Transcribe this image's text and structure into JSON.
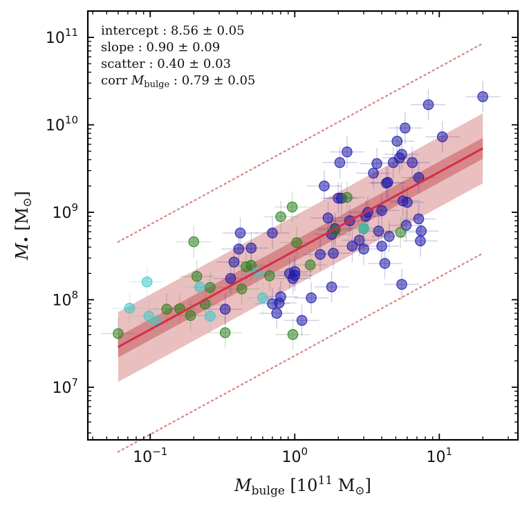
{
  "chart_data": {
    "type": "scatter",
    "title": "",
    "xlabel": {
      "symbol": "M",
      "sub": "bulge",
      "units_pre": "[10",
      "units_exp": "11",
      "units_post": " M",
      "sun": "⊙",
      "close": "]"
    },
    "ylabel": {
      "symbol": "M",
      "sub": "•",
      "units_pre": "[M",
      "sun": "⊙",
      "close": "]"
    },
    "xscale": "log",
    "yscale": "log",
    "xlim": [
      0.037,
      35
    ],
    "ylim": [
      2500000,
      200000000000
    ],
    "xticks": [
      {
        "value": 0.1,
        "base": "10",
        "exp": "−1"
      },
      {
        "value": 1,
        "base": "10",
        "exp": "0"
      },
      {
        "value": 10,
        "base": "10",
        "exp": "1"
      }
    ],
    "yticks": [
      {
        "value": 10000000,
        "base": "10",
        "exp": "7"
      },
      {
        "value": 100000000,
        "base": "10",
        "exp": "8"
      },
      {
        "value": 1000000000,
        "base": "10",
        "exp": "9"
      },
      {
        "value": 10000000000,
        "base": "10",
        "exp": "10"
      },
      {
        "value": 100000000000,
        "base": "10",
        "exp": "11"
      }
    ],
    "annotations": [
      {
        "label": "intercept",
        "sub": "",
        "value": "8.56 ± 0.05"
      },
      {
        "label": "slope",
        "sub": "",
        "value": "0.90 ± 0.09"
      },
      {
        "label": "scatter",
        "sub": "",
        "value": "0.40 ± 0.03"
      },
      {
        "label": "corr ",
        "sym": "M",
        "sub": "bulge",
        "value": "0.79 ± 0.05"
      }
    ],
    "fit": {
      "x_range": [
        0.06,
        20
      ],
      "intercept": 8.56,
      "slope": 0.9,
      "scatter": 0.4,
      "pivot": 1,
      "line_color": "#d62d45",
      "band_color": "#d98a8a",
      "inner_band_dex": 0.12,
      "dotted_offset_dex": 1.2
    },
    "series": [
      {
        "color": "#1f1aa8",
        "points": [
          [
            0.42,
            580000000
          ],
          [
            0.38,
            270000000
          ],
          [
            0.36,
            175000000
          ],
          [
            0.5,
            390000000
          ],
          [
            0.33,
            78000000
          ],
          [
            0.7,
            90000000
          ],
          [
            0.75,
            70000000
          ],
          [
            0.78,
            92000000
          ],
          [
            0.8,
            108000000
          ],
          [
            0.92,
            200000000
          ],
          [
            0.97,
            175000000
          ],
          [
            1.0,
            210000000
          ],
          [
            1.12,
            58000000
          ],
          [
            1.3,
            105000000
          ],
          [
            1.5,
            330000000
          ],
          [
            1.6,
            2000000000
          ],
          [
            1.8,
            140000000
          ],
          [
            1.85,
            340000000
          ],
          [
            1.9,
            650000000
          ],
          [
            2.0,
            1450000000
          ],
          [
            2.05,
            3700000000
          ],
          [
            2.3,
            4900000000
          ],
          [
            2.4,
            800000000
          ],
          [
            2.5,
            410000000
          ],
          [
            2.8,
            480000000
          ],
          [
            3.0,
            380000000
          ],
          [
            3.1,
            900000000
          ],
          [
            3.5,
            2800000000
          ],
          [
            3.7,
            3600000000
          ],
          [
            3.8,
            610000000
          ],
          [
            4.0,
            410000000
          ],
          [
            4.2,
            260000000
          ],
          [
            4.4,
            2200000000
          ],
          [
            4.5,
            530000000
          ],
          [
            4.8,
            3700000000
          ],
          [
            5.1,
            6500000000
          ],
          [
            5.3,
            4200000000
          ],
          [
            5.5,
            4600000000
          ],
          [
            5.5,
            150000000
          ],
          [
            5.8,
            9200000000
          ],
          [
            5.9,
            710000000
          ],
          [
            6.0,
            1300000000
          ],
          [
            7.2,
            840000000
          ],
          [
            7.4,
            470000000
          ],
          [
            7.5,
            610000000
          ],
          [
            8.4,
            17000000000
          ],
          [
            10.5,
            7300000000
          ],
          [
            20.0,
            21000000000
          ]
        ]
      },
      {
        "color": "#1f1aa8",
        "points": [
          [
            0.41,
            380000000
          ],
          [
            0.7,
            580000000
          ],
          [
            1.0,
            190000000
          ],
          [
            1.7,
            860000000
          ],
          [
            1.8,
            560000000
          ],
          [
            2.1,
            1450000000
          ],
          [
            3.2,
            1000000000
          ],
          [
            4.0,
            1050000000
          ],
          [
            4.3,
            2150000000
          ],
          [
            5.6,
            1350000000
          ],
          [
            6.5,
            3700000000
          ],
          [
            7.2,
            2500000000
          ]
        ]
      },
      {
        "color": "#2c7f20",
        "points": [
          [
            0.06,
            41000000
          ],
          [
            0.13,
            78000000
          ],
          [
            0.16,
            79000000
          ],
          [
            0.19,
            66000000
          ],
          [
            0.2,
            460000000
          ],
          [
            0.21,
            185000000
          ],
          [
            0.24,
            89000000
          ],
          [
            0.26,
            138000000
          ],
          [
            0.33,
            42000000
          ],
          [
            0.43,
            133000000
          ],
          [
            0.46,
            238000000
          ],
          [
            0.5,
            248000000
          ],
          [
            0.67,
            188000000
          ],
          [
            0.8,
            890000000
          ],
          [
            0.97,
            40000000
          ],
          [
            0.96,
            1150000000
          ],
          [
            1.03,
            450000000
          ],
          [
            1.28,
            250000000
          ],
          [
            1.9,
            620000000
          ],
          [
            2.3,
            1480000000
          ],
          [
            3.0,
            650000000
          ],
          [
            5.4,
            590000000
          ]
        ]
      },
      {
        "color": "#3ec8c8",
        "points": [
          [
            0.072,
            80000000
          ],
          [
            0.095,
            160000000
          ],
          [
            0.098,
            65000000
          ],
          [
            0.11,
            56000000
          ],
          [
            0.22,
            140000000
          ],
          [
            0.26,
            65000000
          ],
          [
            0.55,
            205000000
          ],
          [
            0.6,
            105000000
          ],
          [
            3.0,
            660000000
          ]
        ]
      }
    ]
  }
}
